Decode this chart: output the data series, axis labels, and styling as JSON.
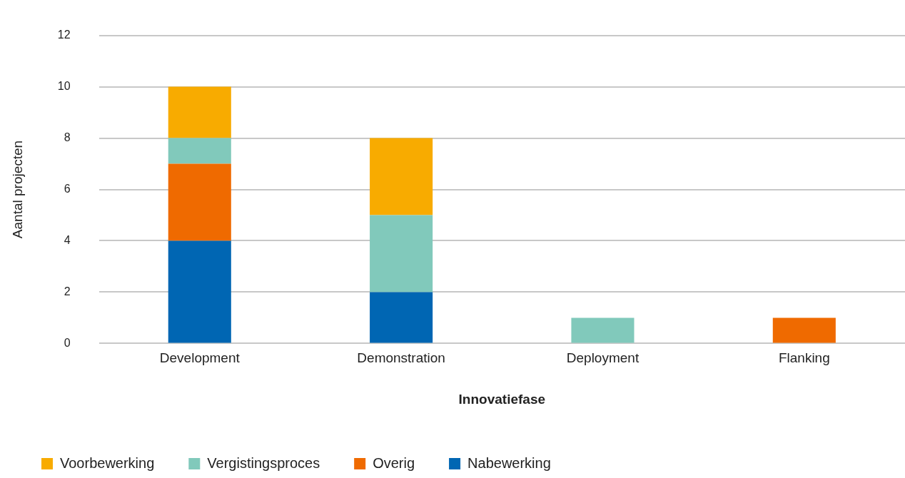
{
  "chart_data": {
    "type": "bar",
    "xlabel": "Innovatiefase",
    "ylabel": "Aantal projecten",
    "categories": [
      "Development",
      "Demonstration",
      "Deployment",
      "Flanking"
    ],
    "stacked": true,
    "series": [
      {
        "name": "Nabewerking",
        "color": "#0066b3",
        "values": [
          4,
          2,
          0,
          0
        ]
      },
      {
        "name": "Overig",
        "color": "#ef6a00",
        "values": [
          3,
          0,
          0,
          1
        ]
      },
      {
        "name": "Vergistingsproces",
        "color": "#81c9bb",
        "values": [
          1,
          3,
          1,
          0
        ]
      },
      {
        "name": "Voorbewerking",
        "color": "#f8ab00",
        "values": [
          2,
          3,
          0,
          0
        ]
      }
    ],
    "ylim": [
      0,
      12
    ],
    "yticks": [
      0,
      2,
      4,
      6,
      8,
      10,
      12
    ],
    "grid": "y",
    "legend": "bottom"
  }
}
